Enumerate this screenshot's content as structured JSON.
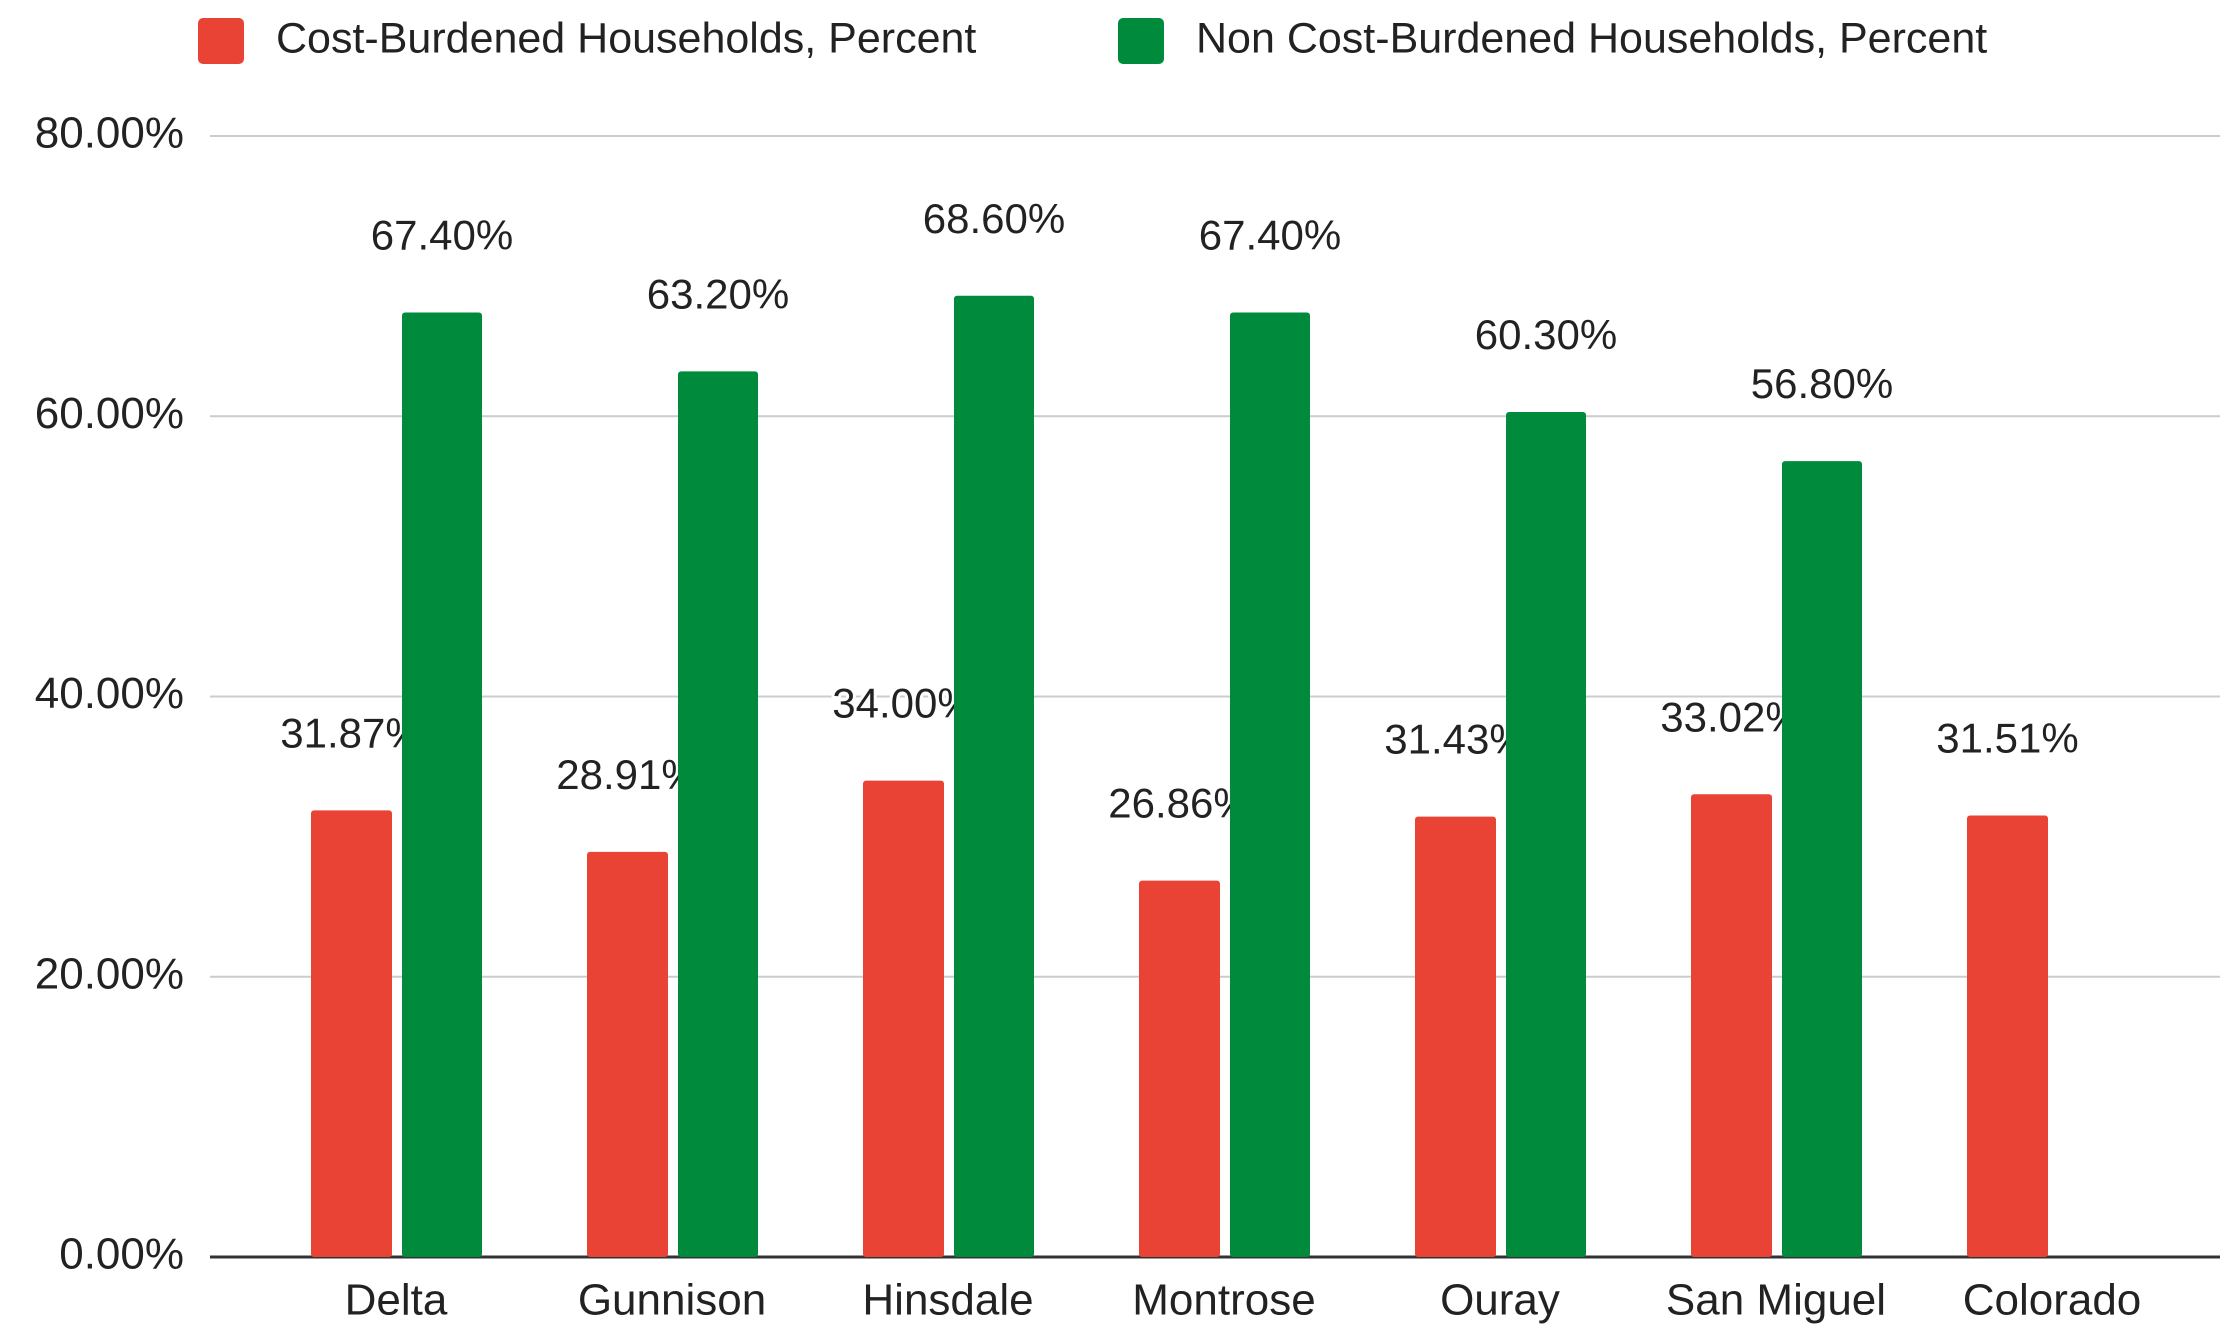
{
  "chart_data": {
    "type": "bar",
    "categories": [
      "Delta",
      "Gunnison",
      "Hinsdale",
      "Montrose",
      "Ouray",
      "San Miguel",
      "Colorado"
    ],
    "series": [
      {
        "name": "Cost-Burdened Households, Percent",
        "color": "#e94335",
        "values": [
          31.87,
          28.91,
          34.0,
          26.86,
          31.43,
          33.02,
          31.51
        ],
        "value_labels": [
          "31.87%",
          "28.91%",
          "34.00%",
          "26.86%",
          "31.43%",
          "33.02%",
          "31.51%"
        ]
      },
      {
        "name": "Non Cost-Burdened Households, Percent",
        "color": "#008a3c",
        "values": [
          67.4,
          63.2,
          68.6,
          67.4,
          60.3,
          56.8,
          null
        ],
        "value_labels": [
          "67.40%",
          "63.20%",
          "68.60%",
          "67.40%",
          "60.30%",
          "56.80%",
          null
        ]
      }
    ],
    "ylim": [
      0,
      80
    ],
    "yticks": [
      {
        "value": 0,
        "label": "0.00%"
      },
      {
        "value": 20,
        "label": "20.00%"
      },
      {
        "value": 40,
        "label": "40.00%"
      },
      {
        "value": 60,
        "label": "60.00%"
      },
      {
        "value": 80,
        "label": "80.00%"
      }
    ],
    "grid": true,
    "legend": "top"
  }
}
